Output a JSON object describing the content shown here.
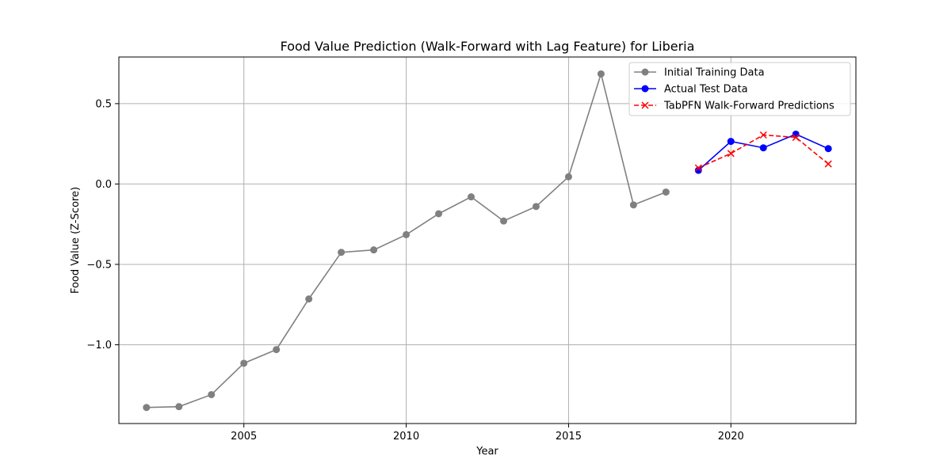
{
  "chart_data": {
    "type": "line",
    "title": "Food Value Prediction (Walk-Forward with Lag Feature) for Liberia",
    "xlabel": "Year",
    "ylabel": "Food Value (Z-Score)",
    "xlim": [
      2001.15,
      2023.85
    ],
    "ylim": [
      -1.49,
      0.79
    ],
    "xticks": [
      2005,
      2010,
      2015,
      2020
    ],
    "xtick_labels": [
      "2005",
      "2010",
      "2015",
      "2020"
    ],
    "yticks": [
      -1.0,
      -0.5,
      0.0,
      0.5
    ],
    "ytick_labels": [
      "−1.0",
      "−0.5",
      "0.0",
      "0.5"
    ],
    "grid": true,
    "legend_position": "top-right",
    "series": [
      {
        "name": "Initial Training Data",
        "color": "#808080",
        "marker": "circle",
        "linestyle": "solid",
        "x": [
          2002,
          2003,
          2004,
          2005,
          2006,
          2007,
          2008,
          2009,
          2010,
          2011,
          2012,
          2013,
          2014,
          2015,
          2016,
          2017,
          2018
        ],
        "y": [
          -1.39,
          -1.385,
          -1.31,
          -1.115,
          -1.03,
          -0.715,
          -0.425,
          -0.41,
          -0.315,
          -0.185,
          -0.08,
          -0.23,
          -0.14,
          0.045,
          0.685,
          -0.13,
          -0.05
        ]
      },
      {
        "name": "Actual Test Data",
        "color": "#0000ff",
        "marker": "circle",
        "linestyle": "solid",
        "x": [
          2019,
          2020,
          2021,
          2022,
          2023
        ],
        "y": [
          0.085,
          0.265,
          0.225,
          0.31,
          0.22
        ]
      },
      {
        "name": "TabPFN Walk-Forward Predictions",
        "color": "#ff0000",
        "marker": "x",
        "linestyle": "dashed",
        "x": [
          2019,
          2020,
          2021,
          2022,
          2023
        ],
        "y": [
          0.1,
          0.19,
          0.305,
          0.29,
          0.125
        ]
      }
    ]
  }
}
